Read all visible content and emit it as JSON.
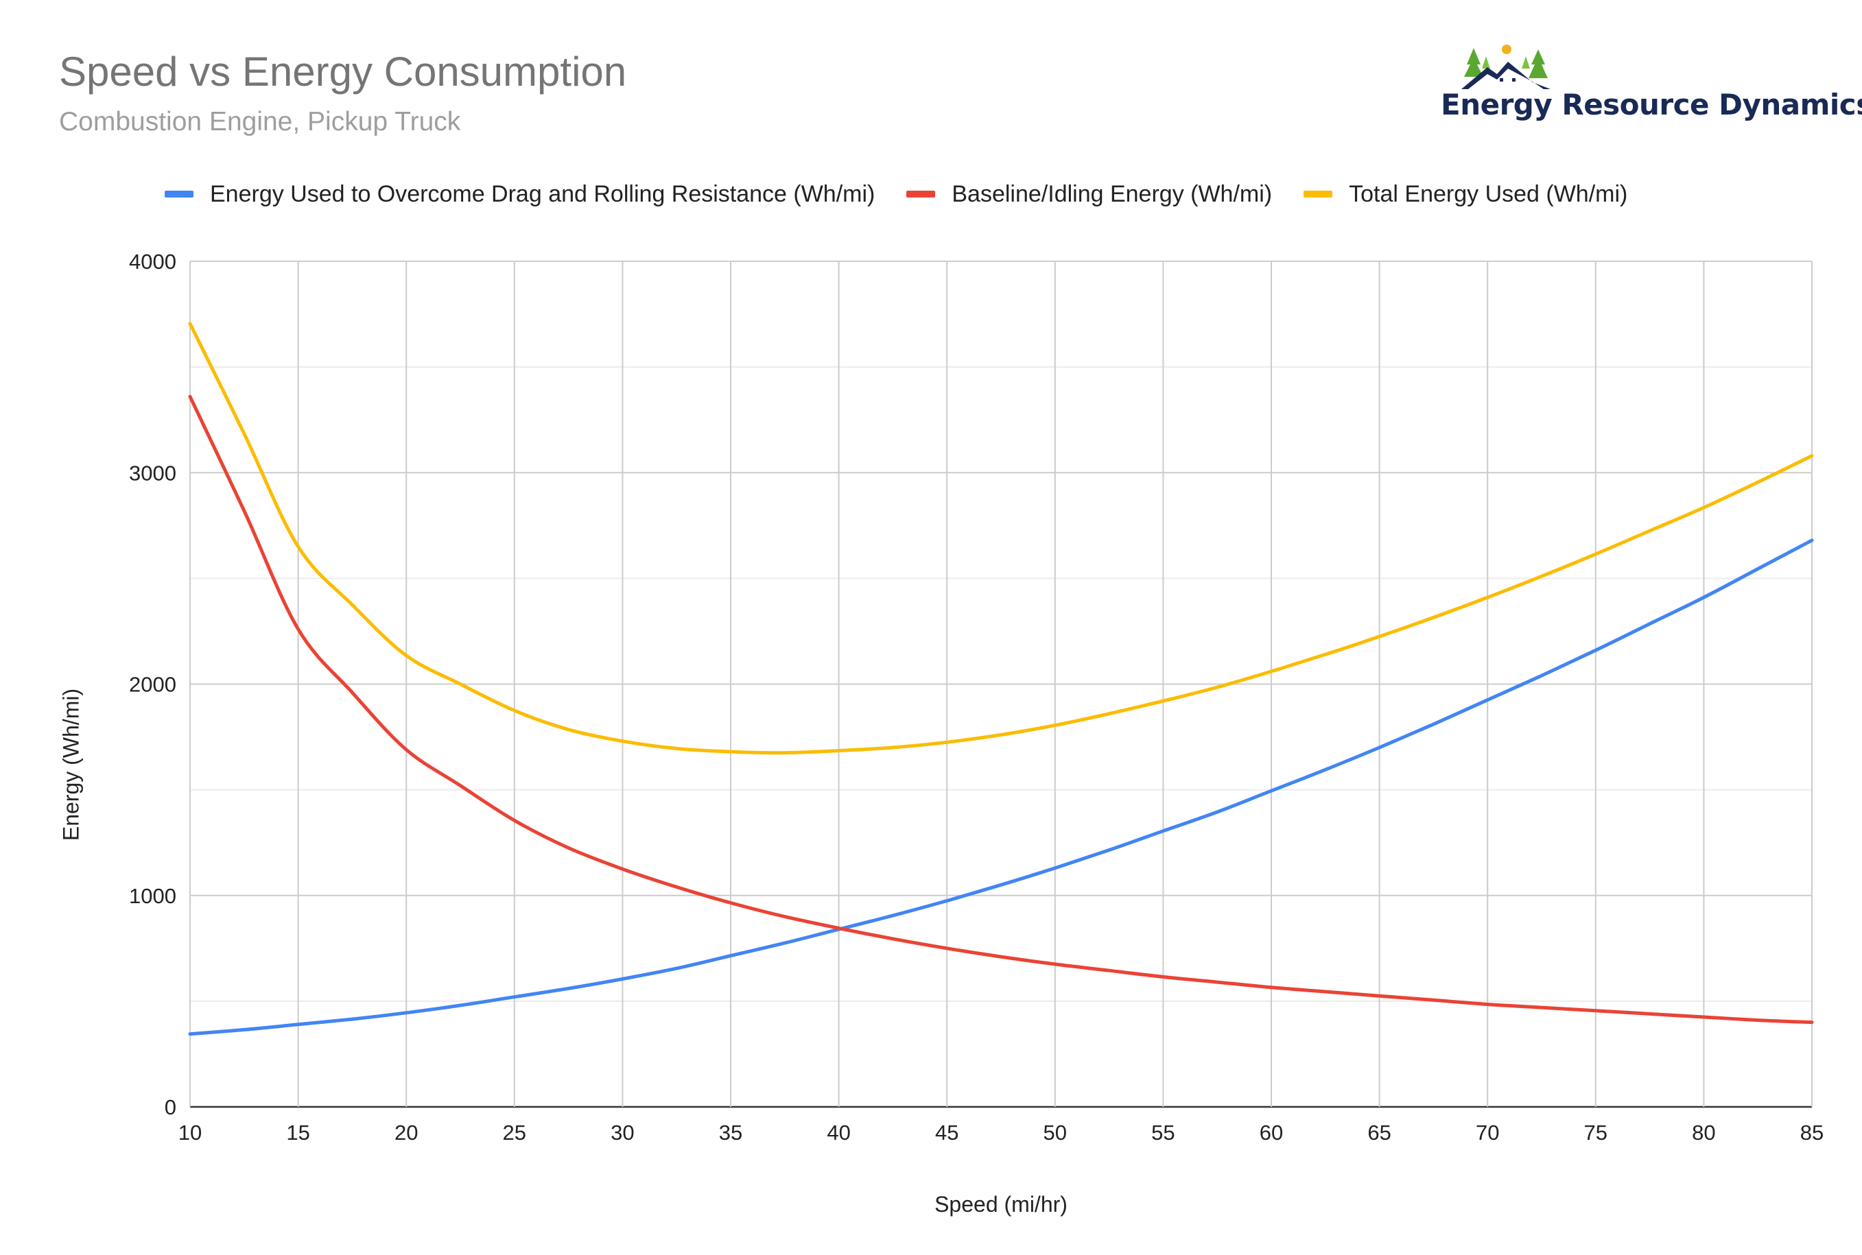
{
  "title": "Speed vs Energy Consumption",
  "subtitle": "Combustion Engine, Pickup Truck",
  "logo": {
    "text": "Energy Resource Dynamics",
    "icon": "house-trees-sun-logo-icon",
    "color": "#1a2a56"
  },
  "chart_data": {
    "type": "line",
    "title": "Speed vs Energy Consumption",
    "subtitle": "Combustion Engine, Pickup Truck",
    "xlabel": "Speed (mi/hr)",
    "ylabel": "Energy (Wh/mi)",
    "xlim": [
      10,
      85
    ],
    "ylim": [
      0,
      4000
    ],
    "x_ticks": [
      10,
      15,
      20,
      25,
      30,
      35,
      40,
      45,
      50,
      55,
      60,
      65,
      70,
      75,
      80,
      85
    ],
    "y_ticks": [
      0,
      1000,
      2000,
      3000,
      4000
    ],
    "grid": true,
    "legend_position": "top",
    "x": [
      10,
      12.5,
      15,
      17.5,
      20,
      22.5,
      25,
      27.5,
      30,
      32.5,
      35,
      37.5,
      40,
      42.5,
      45,
      47.5,
      50,
      52.5,
      55,
      57.5,
      60,
      62.5,
      65,
      67.5,
      70,
      72.5,
      75,
      77.5,
      80,
      82.5,
      85
    ],
    "series": [
      {
        "name": "Energy Used to Overcome Drag and Rolling Resistance (Wh/mi)",
        "color": "#4285f4",
        "values": [
          345,
          365,
          390,
          415,
          445,
          480,
          520,
          560,
          605,
          655,
          715,
          775,
          840,
          905,
          975,
          1050,
          1130,
          1215,
          1305,
          1395,
          1495,
          1595,
          1700,
          1810,
          1925,
          2040,
          2160,
          2285,
          2410,
          2545,
          2680
        ]
      },
      {
        "name": "Baseline/Idling Energy (Wh/mi)",
        "color": "#ea4335",
        "values": [
          3360,
          2820,
          2260,
          1960,
          1690,
          1520,
          1355,
          1225,
          1125,
          1040,
          965,
          900,
          845,
          795,
          750,
          710,
          675,
          645,
          615,
          590,
          565,
          545,
          525,
          505,
          485,
          470,
          455,
          440,
          425,
          410,
          400
        ]
      },
      {
        "name": "Total Energy Used (Wh/mi)",
        "color": "#fbbc04",
        "values": [
          3705,
          3185,
          2650,
          2375,
          2135,
          2000,
          1875,
          1785,
          1730,
          1695,
          1680,
          1675,
          1685,
          1700,
          1725,
          1760,
          1805,
          1860,
          1920,
          1985,
          2060,
          2140,
          2225,
          2315,
          2410,
          2510,
          2615,
          2725,
          2835,
          2955,
          3080
        ]
      }
    ]
  }
}
